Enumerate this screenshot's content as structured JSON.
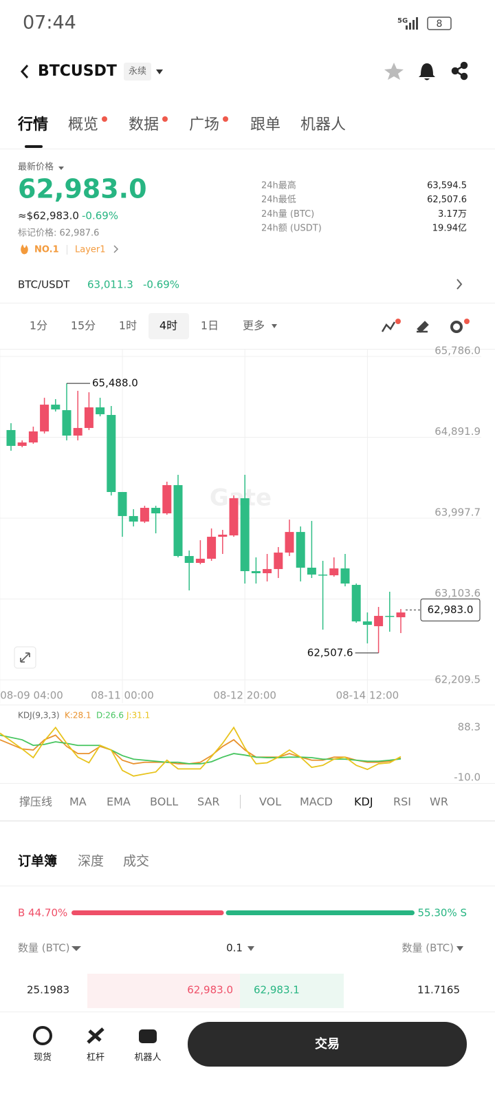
{
  "status_bar": {
    "time": "07:44",
    "network": "5G",
    "battery": "8"
  },
  "header": {
    "symbol": "BTCUSDT",
    "tag": "永续"
  },
  "tabs": [
    "行情",
    "概览",
    "数据",
    "广场",
    "跟单",
    "机器人"
  ],
  "price": {
    "label": "最新价格",
    "last": "62,983.0",
    "usd": "≈$62,983.0",
    "change": "-0.69%",
    "mark": "标记价格: 62,987.6",
    "rank": "NO.1",
    "sector": "Layer1"
  },
  "stats": [
    {
      "label": "24h最高",
      "value": "63,594.5"
    },
    {
      "label": "24h最低",
      "value": "62,507.6"
    },
    {
      "label": "24h量 (BTC)",
      "value": "3.17万"
    },
    {
      "label": "24h额 (USDT)",
      "value": "19.94亿"
    }
  ],
  "spot": {
    "pair": "BTC/USDT",
    "price": "63,011.3",
    "change": "-0.69%"
  },
  "intervals": [
    "1分",
    "15分",
    "1时",
    "4时",
    "1日",
    "更多"
  ],
  "chart_data": [
    {
      "type": "candlestick",
      "up_color": "#ef4f68",
      "down_color": "#2ebd85",
      "candles": {
        "open": [
          64972,
          64797,
          64835,
          64957,
          65253,
          65192,
          64911,
          64995,
          65223,
          65139,
          64287,
          64021,
          63960,
          64112,
          64051,
          64363,
          63579,
          63503,
          63549,
          63792,
          63807,
          64218,
          63412,
          63389,
          63435,
          63617,
          63845,
          63450,
          63374,
          63366,
          63442,
          63260,
          62856,
          62803,
          62917,
          62902
        ],
        "high": [
          65048,
          64858,
          65010,
          65329,
          65314,
          65488.0,
          65406,
          65390,
          65329,
          65238,
          64287,
          64097,
          64135,
          64135,
          64401,
          64477,
          63640,
          63754,
          63884,
          63868,
          64249,
          64477,
          63564,
          63602,
          63678,
          63982,
          63906,
          63967,
          63526,
          63564,
          63602,
          63275,
          62955,
          63016,
          63184,
          62993
        ],
        "low": [
          64743,
          64782,
          64820,
          64934,
          65177,
          64858,
          64858,
          64972,
          65124,
          64249,
          63792,
          63906,
          63944,
          63830,
          64036,
          63564,
          63199,
          63488,
          63526,
          63602,
          63792,
          63275,
          63275,
          63298,
          63336,
          63579,
          63298,
          63336,
          62765,
          63351,
          63244,
          62841,
          62613,
          62507.6,
          62742,
          62727
        ],
        "close": [
          64797,
          64835,
          64957,
          65253,
          65200,
          64911,
          64995,
          65223,
          65147,
          64287,
          64021,
          63960,
          64112,
          64051,
          64363,
          63579,
          63503,
          63549,
          63792,
          63815,
          64218,
          63412,
          63389,
          63435,
          63617,
          63845,
          63450,
          63374,
          63366,
          63442,
          63275,
          62856,
          62818,
          62917,
          62909,
          62955
        ]
      },
      "ylim": [
        62209.5,
        65786.0
      ],
      "yticks": [
        {
          "value": 62209.5,
          "label": "62,209.5"
        },
        {
          "value": 63103.6,
          "label": "63,103.6"
        },
        {
          "value": 63997.7,
          "label": "63,997.7"
        },
        {
          "value": 64891.9,
          "label": "64,891.9"
        },
        {
          "value": 65786.0,
          "label": "65,786.0"
        }
      ],
      "xticks": [
        {
          "value": -1,
          "label": "08-09 04:00"
        },
        {
          "value": 10,
          "label": "08-11 00:00"
        },
        {
          "value": 21,
          "label": "08-12 20:00"
        },
        {
          "value": 32,
          "label": "08-14 12:00"
        }
      ],
      "high_label": "65,488.0",
      "low_label": "62,507.6",
      "last_price": {
        "value": 62983.0,
        "label": "62,983.0"
      },
      "grid": true
    },
    {
      "type": "line",
      "title": "KDJ(9,3,3)",
      "series": [
        {
          "name": "K",
          "color": "#e8912d",
          "values": [
            64,
            46,
            44,
            64,
            73,
            51,
            37,
            37,
            51,
            44,
            24,
            17,
            20,
            20,
            20,
            17,
            17,
            20,
            33,
            51,
            64,
            44,
            30,
            30,
            30,
            37,
            30,
            24,
            24,
            30,
            30,
            24,
            20,
            20,
            22,
            28.1
          ]
        },
        {
          "name": "D",
          "color": "#45c45e",
          "values": [
            73,
            64,
            53,
            55,
            60,
            57,
            53,
            53,
            53,
            44,
            33,
            26,
            24,
            22,
            20,
            20,
            17,
            17,
            21,
            30,
            37,
            34,
            30,
            29,
            29,
            30,
            30,
            29,
            26,
            26,
            26,
            24,
            22,
            22,
            24,
            26.6
          ]
        },
        {
          "name": "J",
          "color": "#e8c31c",
          "values": [
            77,
            46,
            29,
            62,
            88,
            57,
            30,
            19,
            53,
            44,
            4,
            -7,
            -3,
            1,
            24,
            7,
            7,
            7,
            31,
            57,
            88,
            48,
            17,
            19,
            30,
            44,
            30,
            10,
            14,
            26,
            30,
            14,
            6,
            17,
            19,
            31.1
          ]
        }
      ],
      "legend_labels": [
        "K:28.1",
        "D:26.6",
        "J:31.1"
      ],
      "ylim": [
        -10,
        88.3
      ],
      "yticks": [
        {
          "value": -10,
          "label": "-10.0"
        },
        88.3
      ]
    }
  ],
  "indicators": [
    "撑压线",
    "MA",
    "EMA",
    "BOLL",
    "SAR",
    "VOL",
    "MACD",
    "KDJ",
    "RSI",
    "WR"
  ],
  "orderbook": {
    "tabs": [
      "订单簿",
      "深度",
      "成交"
    ],
    "buy_ratio": {
      "value": 44.7,
      "label": "B 44.70%"
    },
    "sell_ratio": {
      "value": 55.3,
      "label": "55.30% S"
    },
    "columns": [
      "数量 (BTC)",
      "0.1",
      "数量 (BTC)"
    ],
    "rows": [
      [
        "25.1983",
        "62,983.0",
        "62,983.1",
        "11.7165"
      ]
    ]
  },
  "nav": [
    "现货",
    "杠杆",
    "机器人"
  ],
  "trade_button": "交易"
}
